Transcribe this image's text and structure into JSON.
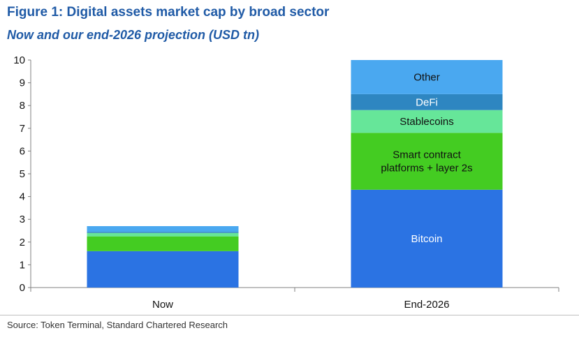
{
  "figure": {
    "title": "Figure 1: Digital assets market cap by broad sector",
    "subtitle": "Now and our end-2026 projection (USD tn)",
    "source": "Source: Token Terminal, Standard Chartered Research"
  },
  "chart_data": {
    "type": "bar",
    "stacked": true,
    "categories": [
      "Now",
      "End-2026"
    ],
    "ylim": [
      0,
      10
    ],
    "yticks": [
      0,
      1,
      2,
      3,
      4,
      5,
      6,
      7,
      8,
      9,
      10
    ],
    "grid": false,
    "legend": "none (segments labelled inside bars)",
    "series": [
      {
        "name": "Bitcoin",
        "label_lines": [
          "Bitcoin"
        ],
        "color": "#2b73e3",
        "values": [
          1.6,
          4.3
        ]
      },
      {
        "name": "Smart contract platforms + layer 2s",
        "label_lines": [
          "Smart contract",
          "platforms + layer 2s"
        ],
        "color": "#44cc22",
        "values": [
          0.65,
          2.5
        ]
      },
      {
        "name": "Stablecoins",
        "label_lines": [
          "Stablecoins"
        ],
        "color": "#66e699",
        "values": [
          0.15,
          1.0
        ]
      },
      {
        "name": "DeFi",
        "label_lines": [
          "DeFi"
        ],
        "color": "#2e86c1",
        "values": [
          0.05,
          0.7
        ]
      },
      {
        "name": "Other",
        "label_lines": [
          "Other"
        ],
        "color": "#4aa8f0",
        "values": [
          0.25,
          1.5
        ]
      }
    ],
    "segment_labels_shown_on": "End-2026"
  }
}
